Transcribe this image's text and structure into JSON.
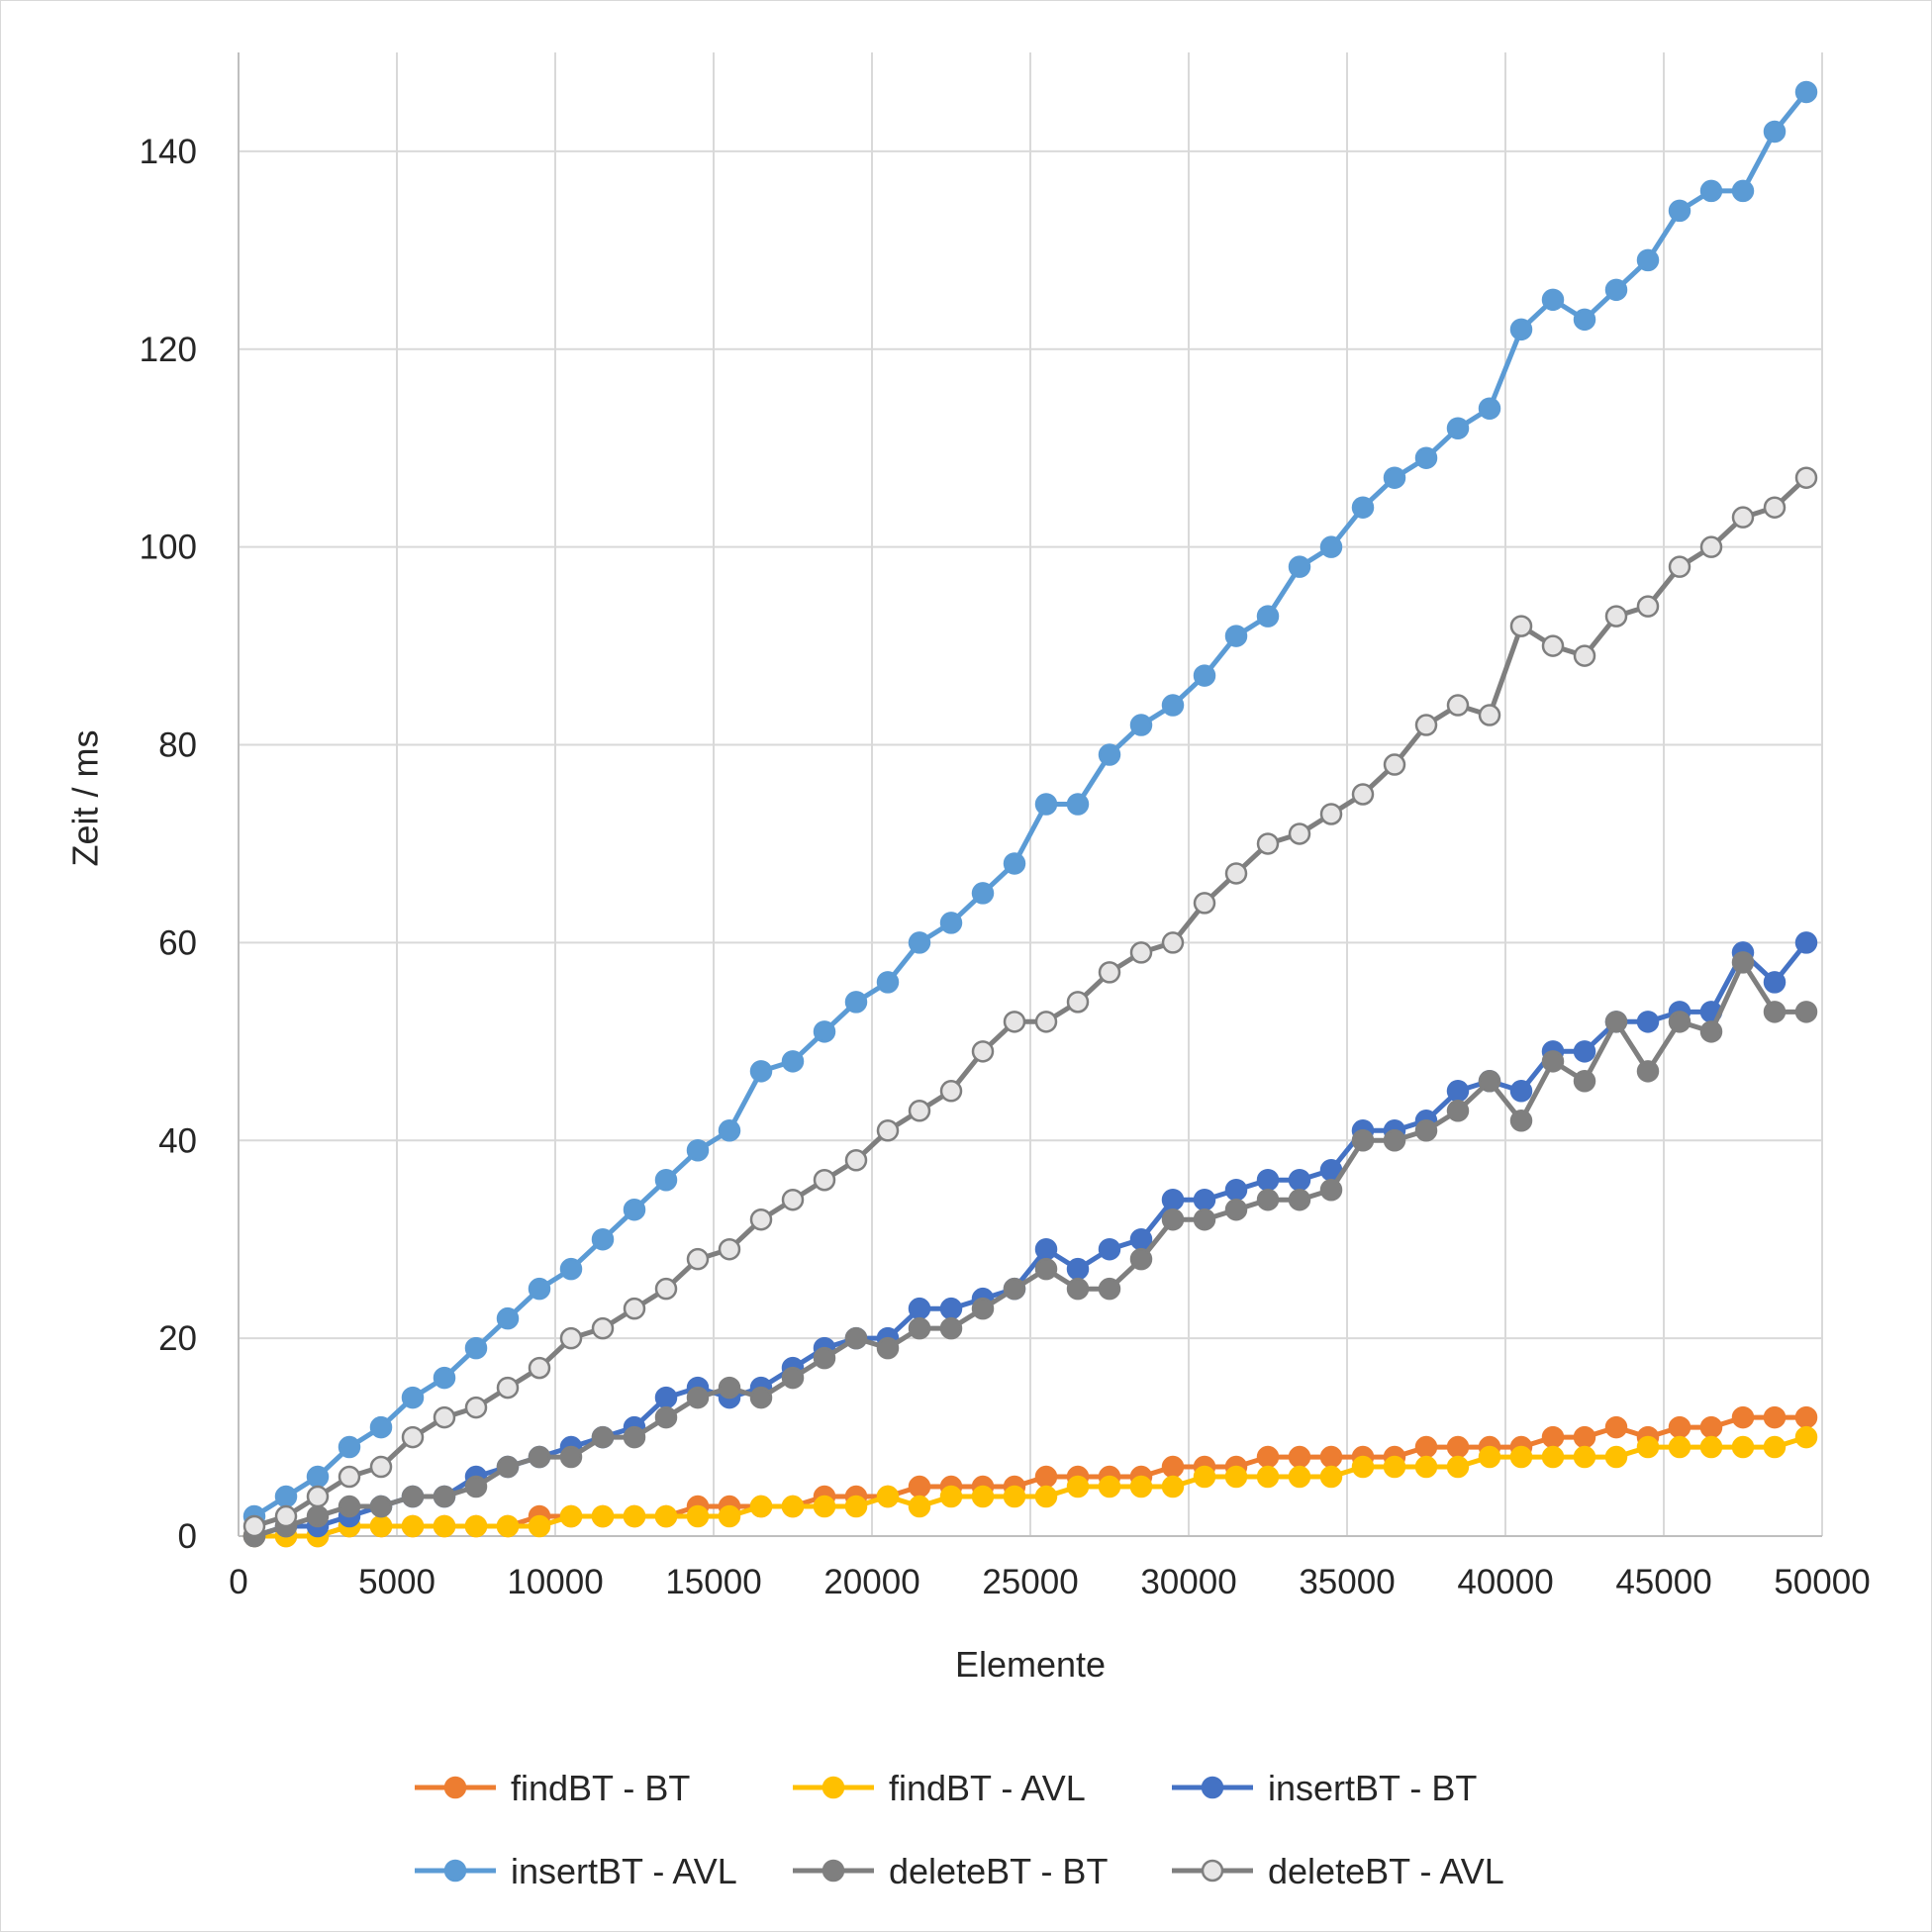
{
  "chart_data": {
    "type": "line",
    "title": "",
    "xlabel": "Elemente",
    "ylabel": "Zeit / ms",
    "xlim": [
      0,
      50000
    ],
    "ylim": [
      0,
      150
    ],
    "x_ticks": [
      0,
      5000,
      10000,
      15000,
      20000,
      25000,
      30000,
      35000,
      40000,
      45000,
      50000
    ],
    "y_ticks": [
      0,
      20,
      40,
      60,
      80,
      100,
      120,
      140
    ],
    "grid": true,
    "legend_position": "bottom",
    "x": [
      500,
      1500,
      2500,
      3500,
      4500,
      5500,
      6500,
      7500,
      8500,
      9500,
      10500,
      11500,
      12500,
      13500,
      14500,
      15500,
      16500,
      17500,
      18500,
      19500,
      20500,
      21500,
      22500,
      23500,
      24500,
      25500,
      26500,
      27500,
      28500,
      29500,
      30500,
      31500,
      32500,
      33500,
      34500,
      35500,
      36500,
      37500,
      38500,
      39500,
      40500,
      41500,
      42500,
      43500,
      44500,
      45500,
      46500,
      47500,
      48500,
      49500
    ],
    "series": [
      {
        "name": "findBT - BT",
        "color": "#ED7D31",
        "marker_fill": "#ED7D31",
        "values": [
          0,
          0,
          0,
          1,
          1,
          1,
          1,
          1,
          1,
          2,
          2,
          2,
          2,
          2,
          3,
          3,
          3,
          3,
          4,
          4,
          4,
          5,
          5,
          5,
          5,
          6,
          6,
          6,
          6,
          7,
          7,
          7,
          8,
          8,
          8,
          8,
          8,
          9,
          9,
          9,
          9,
          10,
          10,
          11,
          10,
          11,
          11,
          12,
          12,
          12
        ]
      },
      {
        "name": "findBT - AVL",
        "color": "#FFC000",
        "marker_fill": "#FFC000",
        "values": [
          0,
          0,
          0,
          1,
          1,
          1,
          1,
          1,
          1,
          1,
          2,
          2,
          2,
          2,
          2,
          2,
          3,
          3,
          3,
          3,
          4,
          3,
          4,
          4,
          4,
          4,
          5,
          5,
          5,
          5,
          6,
          6,
          6,
          6,
          6,
          7,
          7,
          7,
          7,
          8,
          8,
          8,
          8,
          8,
          9,
          9,
          9,
          9,
          9,
          10
        ]
      },
      {
        "name": "insertBT - BT",
        "color": "#4472C4",
        "marker_fill": "#4472C4",
        "values": [
          0,
          1,
          1,
          2,
          3,
          4,
          4,
          6,
          7,
          8,
          9,
          10,
          11,
          14,
          15,
          14,
          15,
          17,
          19,
          20,
          20,
          23,
          23,
          24,
          25,
          29,
          27,
          29,
          30,
          34,
          34,
          35,
          36,
          36,
          37,
          41,
          41,
          42,
          45,
          46,
          45,
          49,
          49,
          52,
          52,
          53,
          53,
          59,
          56,
          60
        ]
      },
      {
        "name": "insertBT - AVL",
        "color": "#5B9BD5",
        "marker_fill": "#5B9BD5",
        "values": [
          2,
          4,
          6,
          9,
          11,
          14,
          16,
          19,
          22,
          25,
          27,
          30,
          33,
          36,
          39,
          41,
          47,
          48,
          51,
          54,
          56,
          60,
          62,
          65,
          68,
          74,
          74,
          79,
          82,
          84,
          87,
          91,
          93,
          98,
          100,
          104,
          107,
          109,
          112,
          114,
          122,
          125,
          123,
          126,
          129,
          134,
          136,
          136,
          142,
          146
        ]
      },
      {
        "name": "deleteBT - BT",
        "color": "#7F7F7F",
        "marker_fill": "#7F7F7F",
        "values": [
          0,
          1,
          2,
          3,
          3,
          4,
          4,
          5,
          7,
          8,
          8,
          10,
          10,
          12,
          14,
          15,
          14,
          16,
          18,
          20,
          19,
          21,
          21,
          23,
          25,
          27,
          25,
          25,
          28,
          32,
          32,
          33,
          34,
          34,
          35,
          40,
          40,
          41,
          43,
          46,
          42,
          48,
          46,
          52,
          47,
          52,
          51,
          58,
          53,
          53
        ]
      },
      {
        "name": "deleteBT - AVL",
        "color": "#7F7F7F",
        "marker_fill": "#E7E6E6",
        "values": [
          1,
          2,
          4,
          6,
          7,
          10,
          12,
          13,
          15,
          17,
          20,
          21,
          23,
          25,
          28,
          29,
          32,
          34,
          36,
          38,
          41,
          43,
          45,
          49,
          52,
          52,
          54,
          57,
          59,
          60,
          64,
          67,
          70,
          71,
          73,
          75,
          78,
          82,
          84,
          83,
          92,
          90,
          89,
          93,
          94,
          98,
          100,
          103,
          104,
          107
        ]
      }
    ]
  }
}
